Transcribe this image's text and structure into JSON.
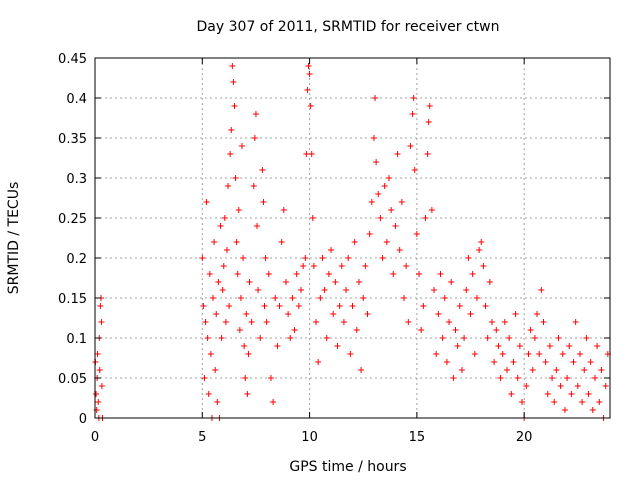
{
  "chart_data": {
    "type": "scatter",
    "title": "Day 307 of 2011, SRMTID for receiver ctwn",
    "xlabel": "GPS time / hours",
    "ylabel": "SRMTID / TECUs",
    "xlim": [
      0,
      24
    ],
    "ylim": [
      0,
      0.45
    ],
    "xticks": [
      0,
      5,
      10,
      15,
      20
    ],
    "yticks": [
      0,
      0.05,
      0.1,
      0.15,
      0.2,
      0.25,
      0.3,
      0.35,
      0.4,
      0.45
    ],
    "xtick_labels": [
      "0",
      "5",
      "10",
      "15",
      "20"
    ],
    "ytick_labels": [
      "0",
      "0.05",
      "0.1",
      "0.15",
      "0.2",
      "0.25",
      "0.3",
      "0.35",
      "0.4",
      "0.45"
    ],
    "grid": true,
    "marker": "+",
    "marker_color": "#ff0000",
    "series": [
      {
        "name": "SRMTID",
        "points": [
          [
            0.02,
            0.07
          ],
          [
            0.05,
            0.03
          ],
          [
            0.08,
            0.01
          ],
          [
            0.1,
            0.05
          ],
          [
            0.12,
            0.08
          ],
          [
            0.15,
            0.02
          ],
          [
            0.18,
            0.0
          ],
          [
            0.2,
            0.1
          ],
          [
            0.22,
            0.06
          ],
          [
            0.25,
            0.14
          ],
          [
            0.28,
            0.15
          ],
          [
            0.3,
            0.12
          ],
          [
            0.32,
            0.04
          ],
          [
            0.35,
            0.0
          ],
          [
            5.0,
            0.2
          ],
          [
            5.05,
            0.14
          ],
          [
            5.1,
            0.05
          ],
          [
            5.15,
            0.12
          ],
          [
            5.2,
            0.27
          ],
          [
            5.25,
            0.1
          ],
          [
            5.3,
            0.03
          ],
          [
            5.35,
            0.18
          ],
          [
            5.4,
            0.08
          ],
          [
            5.45,
            0.0
          ],
          [
            5.5,
            0.15
          ],
          [
            5.55,
            0.22
          ],
          [
            5.6,
            0.06
          ],
          [
            5.65,
            0.13
          ],
          [
            5.7,
            0.02
          ],
          [
            5.75,
            0.17
          ],
          [
            5.8,
            0.0
          ],
          [
            5.85,
            0.24
          ],
          [
            5.9,
            0.1
          ],
          [
            5.95,
            0.16
          ],
          [
            6.0,
            0.19
          ],
          [
            6.05,
            0.25
          ],
          [
            6.1,
            0.12
          ],
          [
            6.15,
            0.21
          ],
          [
            6.2,
            0.29
          ],
          [
            6.25,
            0.14
          ],
          [
            6.3,
            0.33
          ],
          [
            6.35,
            0.36
          ],
          [
            6.4,
            0.44
          ],
          [
            6.45,
            0.42
          ],
          [
            6.5,
            0.39
          ],
          [
            6.55,
            0.3
          ],
          [
            6.6,
            0.22
          ],
          [
            6.65,
            0.18
          ],
          [
            6.7,
            0.26
          ],
          [
            6.75,
            0.11
          ],
          [
            6.8,
            0.15
          ],
          [
            6.85,
            0.34
          ],
          [
            6.9,
            0.2
          ],
          [
            6.95,
            0.09
          ],
          [
            7.0,
            0.05
          ],
          [
            7.05,
            0.13
          ],
          [
            7.1,
            0.03
          ],
          [
            7.15,
            0.08
          ],
          [
            7.2,
            0.17
          ],
          [
            7.3,
            0.12
          ],
          [
            7.4,
            0.29
          ],
          [
            7.45,
            0.35
          ],
          [
            7.5,
            0.38
          ],
          [
            7.55,
            0.24
          ],
          [
            7.6,
            0.16
          ],
          [
            7.7,
            0.1
          ],
          [
            7.8,
            0.31
          ],
          [
            7.85,
            0.27
          ],
          [
            7.9,
            0.14
          ],
          [
            7.95,
            0.2
          ],
          [
            8.0,
            0.12
          ],
          [
            8.1,
            0.18
          ],
          [
            8.2,
            0.05
          ],
          [
            8.3,
            0.02
          ],
          [
            8.4,
            0.15
          ],
          [
            8.5,
            0.09
          ],
          [
            8.6,
            0.14
          ],
          [
            8.7,
            0.22
          ],
          [
            8.8,
            0.26
          ],
          [
            8.9,
            0.17
          ],
          [
            9.0,
            0.13
          ],
          [
            9.1,
            0.1
          ],
          [
            9.2,
            0.15
          ],
          [
            9.3,
            0.11
          ],
          [
            9.4,
            0.18
          ],
          [
            9.5,
            0.14
          ],
          [
            9.6,
            0.16
          ],
          [
            9.7,
            0.19
          ],
          [
            9.8,
            0.2
          ],
          [
            9.85,
            0.33
          ],
          [
            9.9,
            0.41
          ],
          [
            9.95,
            0.44
          ],
          [
            10.0,
            0.43
          ],
          [
            10.05,
            0.39
          ],
          [
            10.1,
            0.33
          ],
          [
            10.15,
            0.25
          ],
          [
            10.2,
            0.19
          ],
          [
            10.3,
            0.12
          ],
          [
            10.4,
            0.07
          ],
          [
            10.5,
            0.15
          ],
          [
            10.6,
            0.2
          ],
          [
            10.7,
            0.16
          ],
          [
            10.8,
            0.1
          ],
          [
            10.9,
            0.18
          ],
          [
            11.0,
            0.21
          ],
          [
            11.1,
            0.13
          ],
          [
            11.2,
            0.17
          ],
          [
            11.3,
            0.09
          ],
          [
            11.4,
            0.14
          ],
          [
            11.5,
            0.19
          ],
          [
            11.6,
            0.12
          ],
          [
            11.7,
            0.16
          ],
          [
            11.8,
            0.2
          ],
          [
            11.9,
            0.08
          ],
          [
            12.0,
            0.14
          ],
          [
            12.1,
            0.22
          ],
          [
            12.2,
            0.11
          ],
          [
            12.3,
            0.17
          ],
          [
            12.4,
            0.06
          ],
          [
            12.5,
            0.15
          ],
          [
            12.6,
            0.19
          ],
          [
            12.7,
            0.13
          ],
          [
            12.8,
            0.23
          ],
          [
            12.9,
            0.27
          ],
          [
            13.0,
            0.35
          ],
          [
            13.05,
            0.4
          ],
          [
            13.1,
            0.32
          ],
          [
            13.2,
            0.28
          ],
          [
            13.3,
            0.25
          ],
          [
            13.4,
            0.2
          ],
          [
            13.5,
            0.29
          ],
          [
            13.6,
            0.22
          ],
          [
            13.7,
            0.3
          ],
          [
            13.8,
            0.26
          ],
          [
            13.9,
            0.18
          ],
          [
            14.0,
            0.24
          ],
          [
            14.1,
            0.33
          ],
          [
            14.2,
            0.21
          ],
          [
            14.3,
            0.27
          ],
          [
            14.4,
            0.15
          ],
          [
            14.5,
            0.19
          ],
          [
            14.6,
            0.12
          ],
          [
            14.7,
            0.34
          ],
          [
            14.8,
            0.38
          ],
          [
            14.85,
            0.4
          ],
          [
            14.9,
            0.31
          ],
          [
            15.0,
            0.23
          ],
          [
            15.1,
            0.18
          ],
          [
            15.2,
            0.11
          ],
          [
            15.3,
            0.14
          ],
          [
            15.4,
            0.25
          ],
          [
            15.5,
            0.33
          ],
          [
            15.55,
            0.37
          ],
          [
            15.6,
            0.39
          ],
          [
            15.7,
            0.26
          ],
          [
            15.8,
            0.16
          ],
          [
            15.9,
            0.08
          ],
          [
            16.0,
            0.13
          ],
          [
            16.1,
            0.18
          ],
          [
            16.2,
            0.1
          ],
          [
            16.3,
            0.15
          ],
          [
            16.4,
            0.07
          ],
          [
            16.5,
            0.12
          ],
          [
            16.6,
            0.17
          ],
          [
            16.7,
            0.05
          ],
          [
            16.8,
            0.11
          ],
          [
            16.9,
            0.09
          ],
          [
            17.0,
            0.14
          ],
          [
            17.1,
            0.06
          ],
          [
            17.2,
            0.1
          ],
          [
            17.3,
            0.16
          ],
          [
            17.4,
            0.2
          ],
          [
            17.5,
            0.13
          ],
          [
            17.6,
            0.18
          ],
          [
            17.7,
            0.08
          ],
          [
            17.8,
            0.15
          ],
          [
            17.9,
            0.21
          ],
          [
            18.0,
            0.22
          ],
          [
            18.1,
            0.19
          ],
          [
            18.2,
            0.14
          ],
          [
            18.3,
            0.1
          ],
          [
            18.4,
            0.17
          ],
          [
            18.5,
            0.12
          ],
          [
            18.6,
            0.07
          ],
          [
            18.7,
            0.11
          ],
          [
            18.8,
            0.09
          ],
          [
            18.9,
            0.05
          ],
          [
            19.0,
            0.08
          ],
          [
            19.1,
            0.12
          ],
          [
            19.2,
            0.06
          ],
          [
            19.3,
            0.1
          ],
          [
            19.4,
            0.03
          ],
          [
            19.5,
            0.07
          ],
          [
            19.6,
            0.13
          ],
          [
            19.7,
            0.05
          ],
          [
            19.8,
            0.09
          ],
          [
            19.9,
            0.02
          ],
          [
            20.0,
            0.0
          ],
          [
            20.1,
            0.04
          ],
          [
            20.2,
            0.08
          ],
          [
            20.3,
            0.11
          ],
          [
            20.4,
            0.06
          ],
          [
            20.5,
            0.1
          ],
          [
            20.6,
            0.13
          ],
          [
            20.7,
            0.08
          ],
          [
            20.8,
            0.16
          ],
          [
            20.9,
            0.12
          ],
          [
            21.0,
            0.07
          ],
          [
            21.1,
            0.03
          ],
          [
            21.2,
            0.09
          ],
          [
            21.3,
            0.05
          ],
          [
            21.4,
            0.02
          ],
          [
            21.5,
            0.06
          ],
          [
            21.6,
            0.1
          ],
          [
            21.7,
            0.04
          ],
          [
            21.8,
            0.08
          ],
          [
            21.9,
            0.01
          ],
          [
            22.0,
            0.05
          ],
          [
            22.1,
            0.09
          ],
          [
            22.2,
            0.03
          ],
          [
            22.3,
            0.07
          ],
          [
            22.4,
            0.12
          ],
          [
            22.5,
            0.04
          ],
          [
            22.6,
            0.08
          ],
          [
            22.7,
            0.02
          ],
          [
            22.8,
            0.06
          ],
          [
            22.9,
            0.1
          ],
          [
            23.0,
            0.03
          ],
          [
            23.1,
            0.07
          ],
          [
            23.2,
            0.01
          ],
          [
            23.3,
            0.05
          ],
          [
            23.4,
            0.09
          ],
          [
            23.5,
            0.02
          ],
          [
            23.6,
            0.06
          ],
          [
            23.7,
            0.0
          ],
          [
            23.8,
            0.04
          ],
          [
            23.9,
            0.08
          ]
        ]
      }
    ]
  }
}
